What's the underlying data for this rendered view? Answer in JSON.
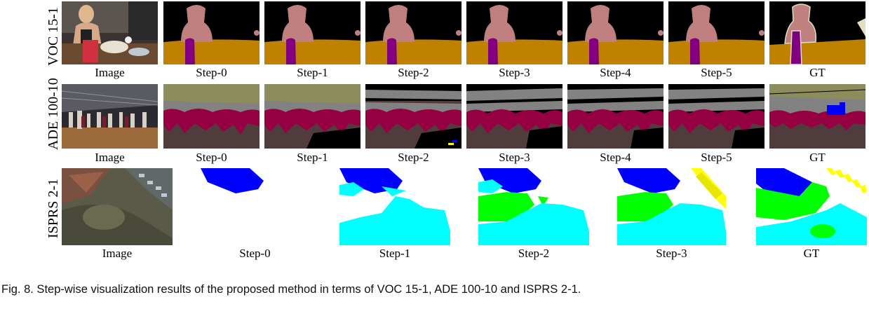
{
  "rows": [
    {
      "label": "VOC 15-1",
      "columns": [
        "Image",
        "Step-0",
        "Step-1",
        "Step-2",
        "Step-3",
        "Step-4",
        "Step-5",
        "GT"
      ]
    },
    {
      "label": "ADE 100-10",
      "columns": [
        "Image",
        "Step-0",
        "Step-1",
        "Step-2",
        "Step-3",
        "Step-4",
        "Step-5",
        "GT"
      ]
    },
    {
      "label": "ISPRS 2-1",
      "columns": [
        "Image",
        "Step-0",
        "Step-1",
        "Step-2",
        "Step-3",
        "GT"
      ]
    }
  ],
  "caption": "Fig. 8. Step-wise visualization results of the proposed method in terms of VOC 15-1, ADE 100-10 and ISPRS 2-1.",
  "colors": {
    "voc_background": "#000000",
    "voc_person": "#c08080",
    "voc_table": "#c08000",
    "voc_bottle": "#800080",
    "ade_ceiling": "#8c8c5c",
    "ade_wall": "#828282",
    "ade_person": "#960040",
    "ade_floor": "#503c3c",
    "ade_extra": "#0000ff",
    "isprs_surface": "#ffffff",
    "isprs_building": "#0000ff",
    "isprs_lowveg": "#00ffff",
    "isprs_tree": "#00ff00",
    "isprs_car": "#ffff00"
  }
}
